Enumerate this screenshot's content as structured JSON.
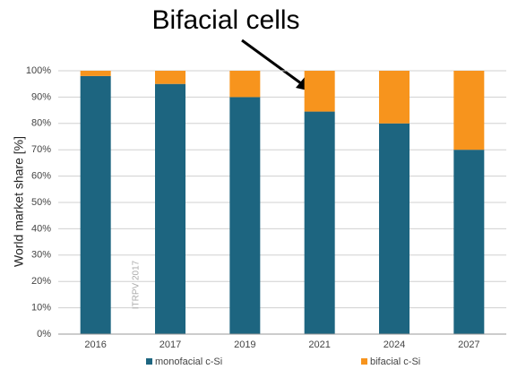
{
  "chart_data": {
    "type": "stacked-bar",
    "annotation": "Bifacial cells",
    "watermark": "ITRPV 2017",
    "y_label": "World market share [%]",
    "categories": [
      "2016",
      "2017",
      "2019",
      "2021",
      "2024",
      "2027"
    ],
    "series": [
      {
        "name": "monofacial c-Si",
        "color": "#1d6580",
        "values": [
          98,
          95,
          90,
          84.5,
          80,
          70
        ]
      },
      {
        "name": "bifacial c-Si",
        "color": "#f7941d",
        "values": [
          2,
          5,
          10,
          15.5,
          20,
          30
        ]
      }
    ],
    "ylim": [
      0,
      100
    ],
    "yticks": [
      {
        "value": 0,
        "label": "0%"
      },
      {
        "value": 10,
        "label": "10%"
      },
      {
        "value": 20,
        "label": "20%"
      },
      {
        "value": 30,
        "label": "30%"
      },
      {
        "value": 40,
        "label": "40%"
      },
      {
        "value": 50,
        "label": "50%"
      },
      {
        "value": 60,
        "label": "60%"
      },
      {
        "value": 70,
        "label": "70%"
      },
      {
        "value": 80,
        "label": "80%"
      },
      {
        "value": 90,
        "label": "90%"
      },
      {
        "value": 100,
        "label": "100%"
      }
    ],
    "grid": true
  }
}
